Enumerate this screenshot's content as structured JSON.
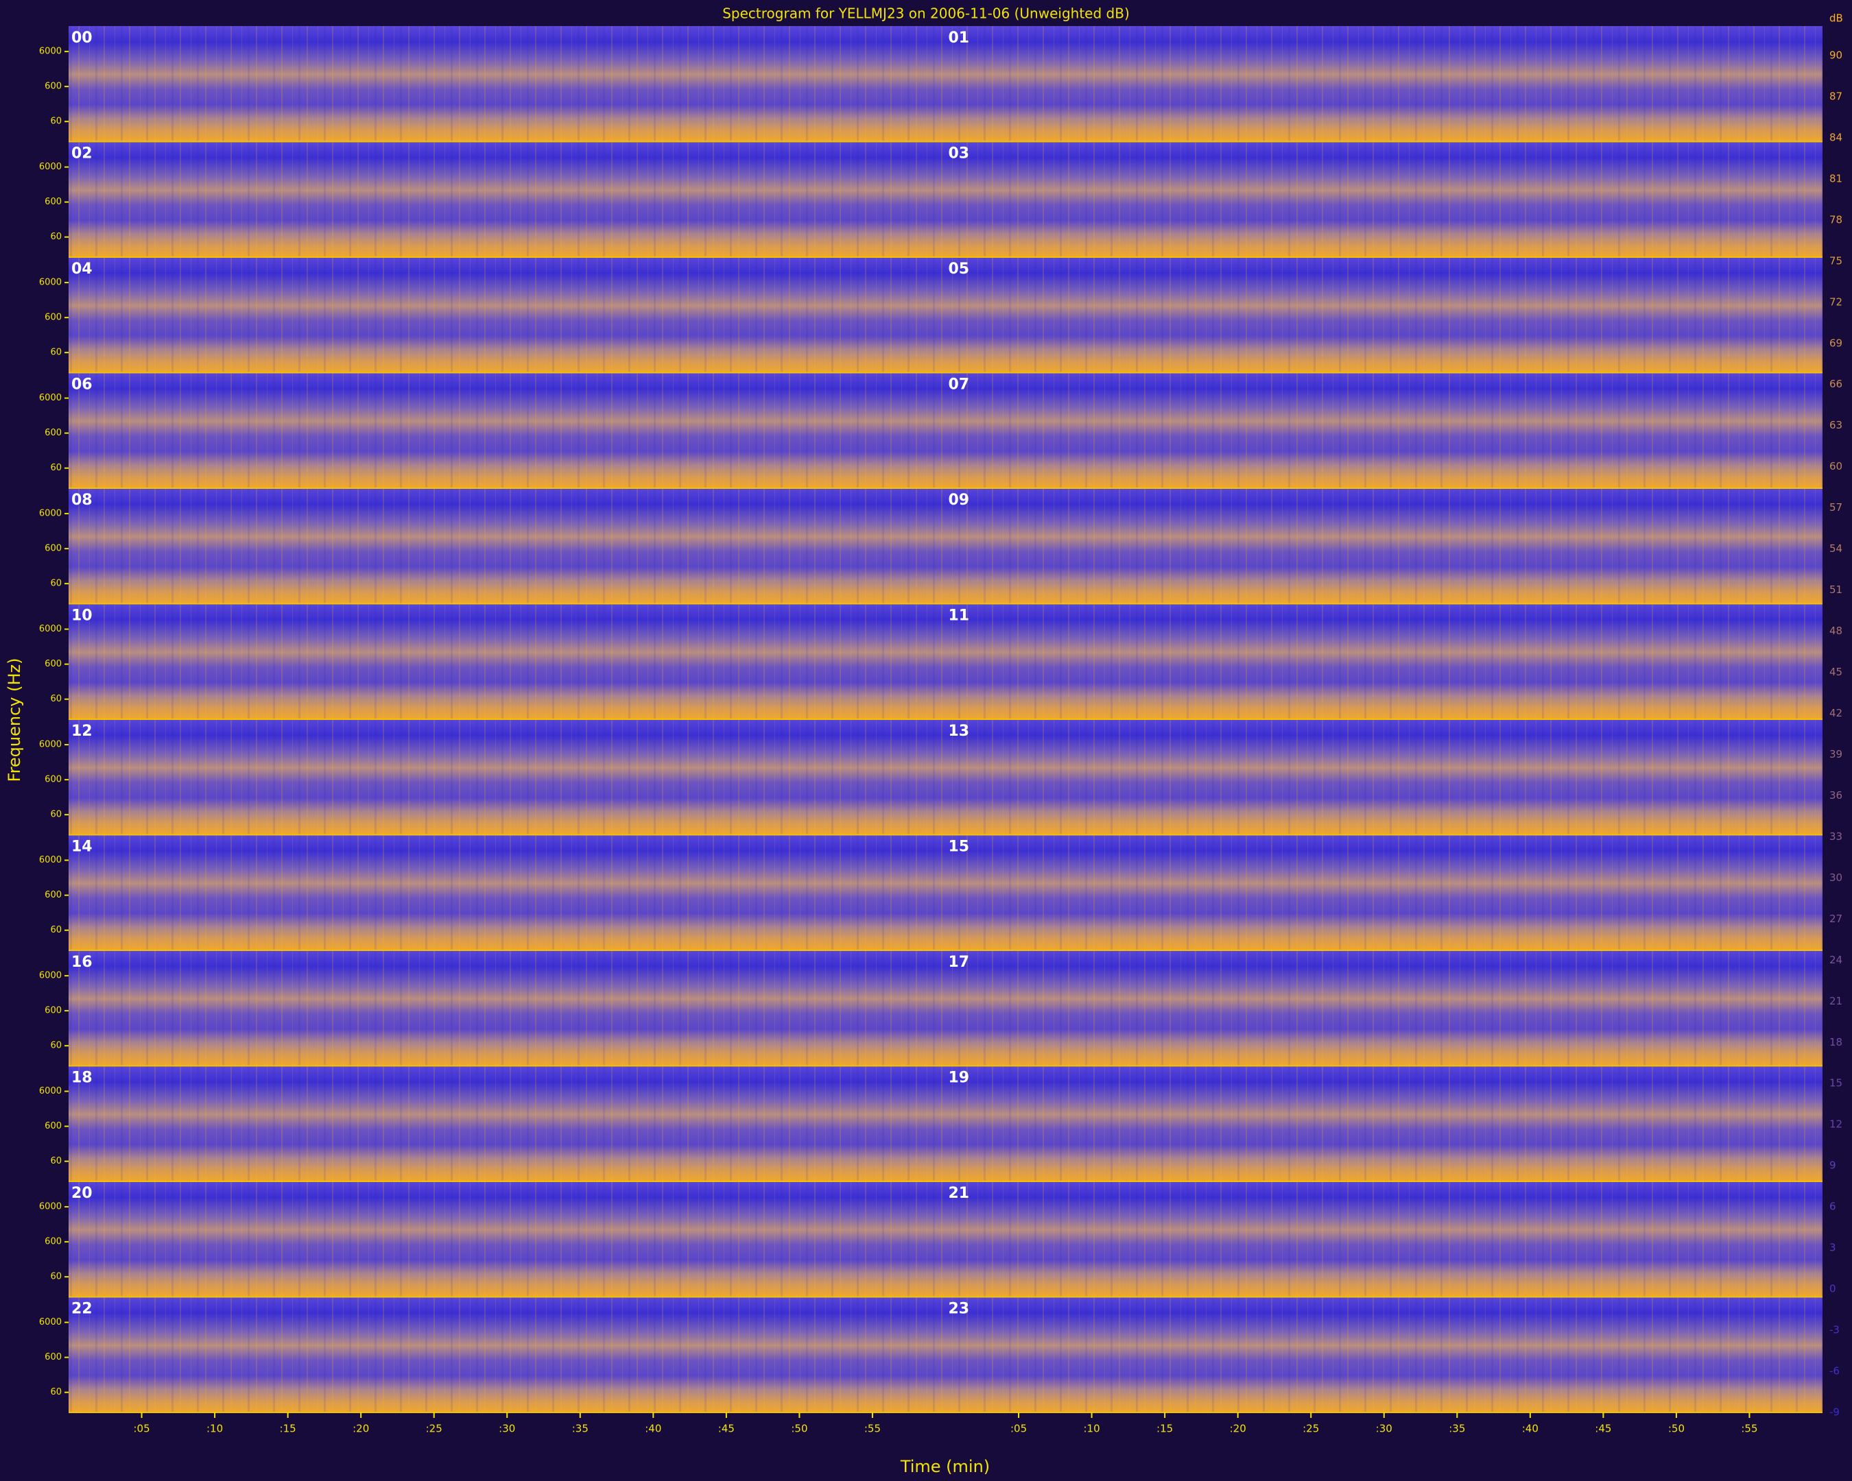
{
  "chart_data": {
    "type": "spectrogram",
    "title": "Spectrogram for YELLMJ23 on 2006-11-06 (Unweighted dB)",
    "xlabel": "Time (min)",
    "ylabel": "Frequency (Hz)",
    "panels": [
      "00",
      "01",
      "02",
      "03",
      "04",
      "05",
      "06",
      "07",
      "08",
      "09",
      "10",
      "11",
      "12",
      "13",
      "14",
      "15",
      "16",
      "17",
      "18",
      "19",
      "20",
      "21",
      "22",
      "23"
    ],
    "xlim": [
      0,
      60
    ],
    "xticks": [
      {
        "value": 5,
        "label": ":05"
      },
      {
        "value": 10,
        "label": ":10"
      },
      {
        "value": 15,
        "label": ":15"
      },
      {
        "value": 20,
        "label": ":20"
      },
      {
        "value": 25,
        "label": ":25"
      },
      {
        "value": 30,
        "label": ":30"
      },
      {
        "value": 35,
        "label": ":35"
      },
      {
        "value": 40,
        "label": ":40"
      },
      {
        "value": 45,
        "label": ":45"
      },
      {
        "value": 50,
        "label": ":50"
      },
      {
        "value": 55,
        "label": ":55"
      }
    ],
    "ylim": [
      16,
      32000
    ],
    "yscale": "log",
    "yticks": [
      60,
      600,
      6000
    ],
    "colorbar_label": "dB",
    "clim": [
      -9,
      93
    ],
    "cticks": [
      90,
      87,
      84,
      81,
      78,
      75,
      72,
      69,
      66,
      63,
      60,
      57,
      54,
      51,
      48,
      45,
      42,
      39,
      36,
      33,
      30,
      27,
      24,
      21,
      18,
      15,
      12,
      9,
      6,
      3,
      0,
      -3,
      -6,
      -9
    ],
    "color_low": "#3a2bd0",
    "color_high": "#ffb020"
  }
}
